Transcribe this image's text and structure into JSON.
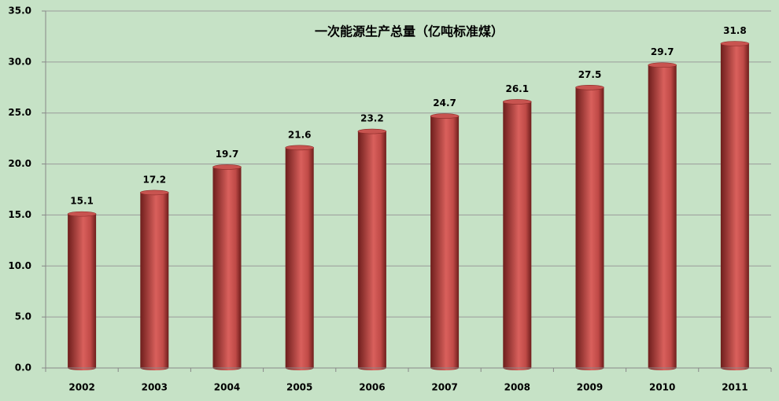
{
  "chart_data": {
    "type": "bar",
    "title": "一次能源生产总量（亿吨标准煤）",
    "categories": [
      "2002",
      "2003",
      "2004",
      "2005",
      "2006",
      "2007",
      "2008",
      "2009",
      "2010",
      "2011"
    ],
    "values": [
      15.1,
      17.2,
      19.7,
      21.6,
      23.2,
      24.7,
      26.1,
      27.5,
      29.7,
      31.8
    ],
    "color": "#c0504d",
    "ylim": [
      0,
      35
    ],
    "yticks": [
      {
        "value": 0,
        "label": "0.0"
      },
      {
        "value": 5,
        "label": "5.0"
      },
      {
        "value": 10,
        "label": "10.0"
      },
      {
        "value": 15,
        "label": "15.0"
      },
      {
        "value": 20,
        "label": "20.0"
      },
      {
        "value": 25,
        "label": "25.0"
      },
      {
        "value": 30,
        "label": "30.0"
      },
      {
        "value": 35,
        "label": "35.0"
      }
    ],
    "grid": true
  }
}
